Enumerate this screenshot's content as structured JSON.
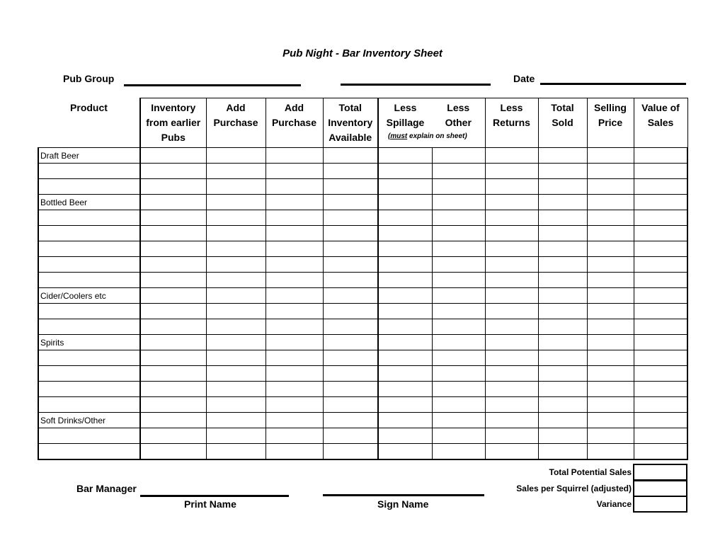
{
  "title": "Pub Night - Bar Inventory Sheet",
  "header": {
    "pub_group_label": "Pub Group",
    "date_label": "Date"
  },
  "table": {
    "product_header": "Product",
    "columns": [
      [
        "Inventory",
        "from earlier",
        "Pubs"
      ],
      [
        "Add",
        "Purchase",
        ""
      ],
      [
        "Add",
        "Purchase",
        ""
      ],
      [
        "Total",
        "Inventory",
        "Available"
      ],
      [
        "Less",
        "Spillage",
        ""
      ],
      [
        "Less",
        "Other",
        ""
      ],
      [
        "Less",
        "Returns",
        ""
      ],
      [
        "Total",
        "Sold",
        ""
      ],
      [
        "Selling",
        "Price",
        ""
      ],
      [
        "Value of",
        "Sales",
        ""
      ]
    ],
    "spillage_note_must": "(must",
    "spillage_note_rest": " explain on sheet)",
    "rows": [
      "Draft Beer",
      "",
      "",
      "Bottled Beer",
      "",
      "",
      "",
      "",
      "",
      "Cider/Coolers etc",
      "",
      "",
      "Spirits",
      "",
      "",
      "",
      "",
      "Soft Drinks/Other",
      "",
      ""
    ]
  },
  "summary": {
    "total_potential_sales": "Total Potential Sales",
    "sales_per_squirrel": "Sales per Squirrel (adjusted)",
    "variance": "Variance"
  },
  "footer": {
    "bar_manager_label": "Bar Manager",
    "print_name": "Print Name",
    "sign_name": "Sign Name"
  }
}
